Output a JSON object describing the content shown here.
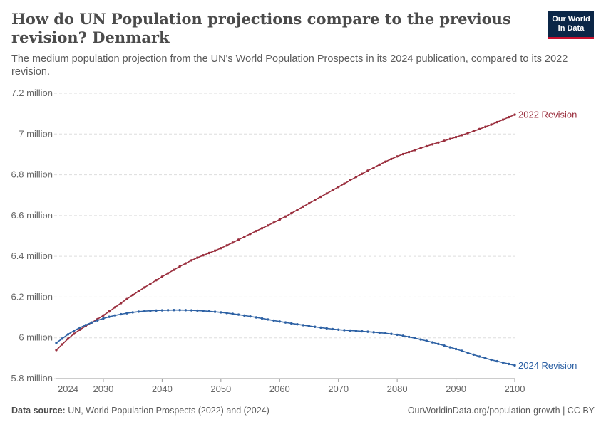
{
  "header": {
    "title": "How do UN Population projections compare to the previous revision? Denmark",
    "subtitle": "The medium population projection from the UN's World Population Prospects in its 2024 publication, compared to its 2022 revision."
  },
  "logo": {
    "line1": "Our World",
    "line2": "in Data"
  },
  "footer": {
    "source_label": "Data source:",
    "source_text": "UN, World Population Prospects (2022) and (2024)",
    "right_text": "OurWorldinData.org/population-growth | CC BY"
  },
  "colors": {
    "rev2022": "#9a2e3d",
    "rev2024": "#2d61a4",
    "grid": "#dddddd",
    "axis": "#999999"
  },
  "chart_data": {
    "type": "line",
    "title": "How do UN Population projections compare to the previous revision? Denmark",
    "xlim": [
      2022,
      2100
    ],
    "ylim": [
      5.8,
      7.2
    ],
    "y_unit": "million",
    "x_ticks": [
      2024,
      2030,
      2040,
      2050,
      2060,
      2070,
      2080,
      2090,
      2100
    ],
    "y_ticks": [
      {
        "value": 5.8,
        "label": "5.8 million"
      },
      {
        "value": 6.0,
        "label": "6 million"
      },
      {
        "value": 6.2,
        "label": "6.2 million"
      },
      {
        "value": 6.4,
        "label": "6.4 million"
      },
      {
        "value": 6.6,
        "label": "6.6 million"
      },
      {
        "value": 6.8,
        "label": "6.8 million"
      },
      {
        "value": 7.0,
        "label": "7 million"
      },
      {
        "value": 7.2,
        "label": "7.2 million"
      }
    ],
    "grid": true,
    "series": [
      {
        "name": "2022 Revision",
        "color": "#9a2e3d",
        "points": [
          [
            2022,
            5.94
          ],
          [
            2025,
            6.02
          ],
          [
            2030,
            6.11
          ],
          [
            2035,
            6.21
          ],
          [
            2040,
            6.3
          ],
          [
            2045,
            6.38
          ],
          [
            2050,
            6.44
          ],
          [
            2055,
            6.51
          ],
          [
            2060,
            6.58
          ],
          [
            2065,
            6.66
          ],
          [
            2070,
            6.74
          ],
          [
            2075,
            6.82
          ],
          [
            2080,
            6.89
          ],
          [
            2085,
            6.94
          ],
          [
            2090,
            6.985
          ],
          [
            2095,
            7.035
          ],
          [
            2100,
            7.095
          ]
        ]
      },
      {
        "name": "2024 Revision",
        "color": "#2d61a4",
        "points": [
          [
            2022,
            5.975
          ],
          [
            2025,
            6.035
          ],
          [
            2030,
            6.095
          ],
          [
            2035,
            6.125
          ],
          [
            2040,
            6.135
          ],
          [
            2045,
            6.135
          ],
          [
            2050,
            6.125
          ],
          [
            2055,
            6.105
          ],
          [
            2060,
            6.08
          ],
          [
            2065,
            6.058
          ],
          [
            2070,
            6.04
          ],
          [
            2075,
            6.03
          ],
          [
            2080,
            6.015
          ],
          [
            2085,
            5.985
          ],
          [
            2090,
            5.945
          ],
          [
            2095,
            5.9
          ],
          [
            2100,
            5.865
          ]
        ]
      }
    ]
  }
}
